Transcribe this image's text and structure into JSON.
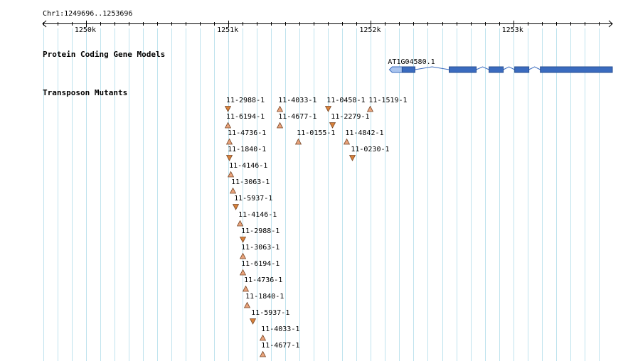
{
  "location": "Chr1:1249696..1253696",
  "ruler": {
    "start": 1249696,
    "end": 1253696,
    "ticks": [
      {
        "pos": 1250000,
        "label": "1250k"
      },
      {
        "pos": 1251000,
        "label": "1251k"
      },
      {
        "pos": 1252000,
        "label": "1252k"
      },
      {
        "pos": 1253000,
        "label": "1253k"
      }
    ]
  },
  "tracks": {
    "gene_models": {
      "title": "Protein Coding Gene Models",
      "genes": [
        {
          "name": "AT1G04580.1",
          "strand": "-",
          "start": 1252130,
          "end": 1253696,
          "exons": [
            [
              1252130,
              1252310
            ],
            [
              1252550,
              1252740
            ],
            [
              1252830,
              1252930
            ],
            [
              1253010,
              1253110
            ],
            [
              1253190,
              1253696
            ]
          ],
          "color": "#3a6bbf",
          "utr_color": "#a9c4ee"
        }
      ]
    },
    "transposon_mutants": {
      "title": "Transposon Mutants",
      "up_color": "#e8a27a",
      "down_color": "#d8813a",
      "items": [
        {
          "label": "11-2988-1",
          "pos": 1250994,
          "row": 0,
          "dir": "down"
        },
        {
          "label": "11-4033-1",
          "pos": 1251360,
          "row": 0,
          "dir": "up"
        },
        {
          "label": "11-0458-1",
          "pos": 1251700,
          "row": 0,
          "dir": "down"
        },
        {
          "label": "11-1519-1",
          "pos": 1251995,
          "row": 0,
          "dir": "up"
        },
        {
          "label": "11-6194-1",
          "pos": 1250994,
          "row": 1,
          "dir": "up"
        },
        {
          "label": "11-4677-1",
          "pos": 1251360,
          "row": 1,
          "dir": "up"
        },
        {
          "label": "11-2279-1",
          "pos": 1251730,
          "row": 1,
          "dir": "down"
        },
        {
          "label": "11-4736-1",
          "pos": 1251005,
          "row": 2,
          "dir": "up"
        },
        {
          "label": "11-0155-1",
          "pos": 1251490,
          "row": 2,
          "dir": "up"
        },
        {
          "label": "11-4842-1",
          "pos": 1251830,
          "row": 2,
          "dir": "up"
        },
        {
          "label": "11-1840-1",
          "pos": 1251005,
          "row": 3,
          "dir": "down"
        },
        {
          "label": "11-0230-1",
          "pos": 1251870,
          "row": 3,
          "dir": "down"
        },
        {
          "label": "11-4146-1",
          "pos": 1251015,
          "row": 4,
          "dir": "up"
        },
        {
          "label": "11-3063-1",
          "pos": 1251030,
          "row": 5,
          "dir": "up"
        },
        {
          "label": "11-5937-1",
          "pos": 1251050,
          "row": 6,
          "dir": "down"
        },
        {
          "label": "11-4146-1",
          "pos": 1251080,
          "row": 7,
          "dir": "up"
        },
        {
          "label": "11-2988-1",
          "pos": 1251100,
          "row": 8,
          "dir": "down"
        },
        {
          "label": "11-3063-1",
          "pos": 1251100,
          "row": 9,
          "dir": "up"
        },
        {
          "label": "11-6194-1",
          "pos": 1251100,
          "row": 10,
          "dir": "up"
        },
        {
          "label": "11-4736-1",
          "pos": 1251120,
          "row": 11,
          "dir": "up"
        },
        {
          "label": "11-1840-1",
          "pos": 1251130,
          "row": 12,
          "dir": "up"
        },
        {
          "label": "11-5937-1",
          "pos": 1251170,
          "row": 13,
          "dir": "down"
        },
        {
          "label": "11-4033-1",
          "pos": 1251240,
          "row": 14,
          "dir": "up"
        },
        {
          "label": "11-4677-1",
          "pos": 1251240,
          "row": 15,
          "dir": "up"
        }
      ]
    }
  }
}
